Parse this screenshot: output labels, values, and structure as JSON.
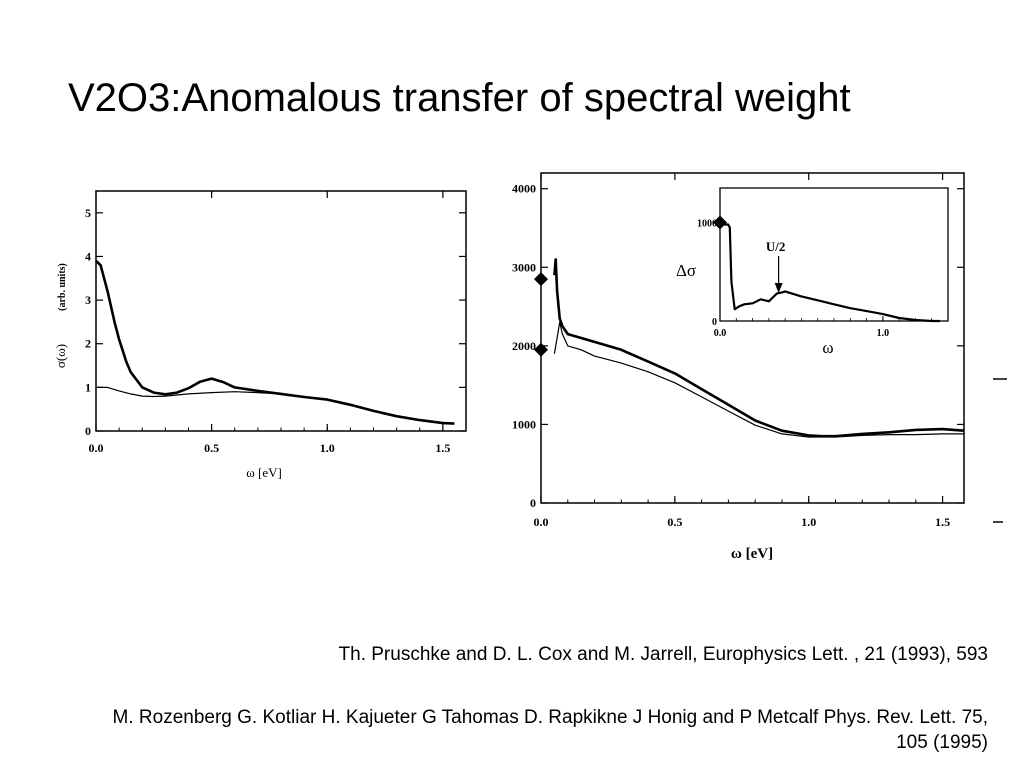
{
  "slide": {
    "title": "V2O3:Anomalous transfer of spectral weight",
    "references": [
      "Th. Pruschke and D. L. Cox and M. Jarrell, Europhysics Lett. , 21 (1993), 593",
      "M. Rozenberg G. Kotliar H. Kajueter G Tahomas D. Rapkikne J Honig and P Metcalf Phys. Rev. Lett. 75, 105 (1995)"
    ]
  },
  "chart_data": [
    {
      "type": "line",
      "xlabel": "ω [eV]",
      "ylabel": "σ(ω)",
      "ylabel_unit": "(arb. units)",
      "xlim": [
        0,
        1.6
      ],
      "ylim": [
        0,
        5.5
      ],
      "xticks": [
        0.0,
        0.5,
        1.0,
        1.5
      ],
      "xtick_labels": [
        "0.0",
        "0.5",
        "1.0",
        "1.5"
      ],
      "yticks": [
        0,
        1,
        2,
        3,
        4,
        5
      ],
      "ytick_labels": [
        "0",
        "1",
        "2",
        "3",
        "4",
        "5"
      ],
      "grid": false,
      "series": [
        {
          "style": "thick",
          "x": [
            0.0,
            0.02,
            0.05,
            0.08,
            0.1,
            0.13,
            0.15,
            0.2,
            0.25,
            0.3,
            0.35,
            0.4,
            0.45,
            0.5,
            0.55,
            0.6,
            0.7,
            0.8,
            0.9,
            1.0,
            1.1,
            1.2,
            1.3,
            1.4,
            1.5,
            1.55
          ],
          "y": [
            3.9,
            3.8,
            3.2,
            2.5,
            2.1,
            1.6,
            1.35,
            1.0,
            0.88,
            0.84,
            0.88,
            0.98,
            1.13,
            1.2,
            1.12,
            1.0,
            0.92,
            0.85,
            0.78,
            0.72,
            0.6,
            0.46,
            0.34,
            0.25,
            0.18,
            0.17
          ]
        },
        {
          "style": "thin",
          "x": [
            0.0,
            0.05,
            0.1,
            0.15,
            0.2,
            0.25,
            0.3,
            0.4,
            0.5,
            0.6,
            0.7,
            0.8,
            0.9,
            1.0,
            1.1,
            1.2,
            1.3,
            1.4,
            1.5,
            1.55
          ],
          "y": [
            1.0,
            1.0,
            0.92,
            0.85,
            0.8,
            0.79,
            0.8,
            0.85,
            0.88,
            0.9,
            0.88,
            0.85,
            0.79,
            0.72,
            0.6,
            0.46,
            0.34,
            0.25,
            0.18,
            0.17
          ]
        }
      ]
    },
    {
      "type": "line",
      "xlabel": "ω [eV]",
      "xlim": [
        0,
        1.58
      ],
      "ylim": [
        0,
        4200
      ],
      "xticks": [
        0.0,
        0.5,
        1.0,
        1.5
      ],
      "xtick_labels": [
        "0.0",
        "0.5",
        "1.0",
        "1.5"
      ],
      "yticks": [
        0,
        1000,
        2000,
        3000,
        4000
      ],
      "ytick_labels": [
        "0",
        "1000",
        "2000",
        "3000",
        "4000"
      ],
      "grid": false,
      "markers": [
        {
          "shape": "diamond",
          "x": 0.0,
          "y": 2850
        },
        {
          "shape": "diamond",
          "x": 0.0,
          "y": 1950
        }
      ],
      "series": [
        {
          "style": "thick",
          "x": [
            0.05,
            0.055,
            0.06,
            0.07,
            0.08,
            0.1,
            0.15,
            0.2,
            0.3,
            0.4,
            0.5,
            0.6,
            0.7,
            0.8,
            0.9,
            1.0,
            1.05,
            1.1,
            1.2,
            1.3,
            1.4,
            1.5,
            1.58
          ],
          "y": [
            2900,
            3100,
            2700,
            2350,
            2250,
            2150,
            2100,
            2050,
            1950,
            1800,
            1650,
            1450,
            1250,
            1050,
            920,
            860,
            850,
            850,
            880,
            900,
            930,
            940,
            920
          ]
        },
        {
          "style": "thin",
          "x": [
            0.05,
            0.06,
            0.07,
            0.08,
            0.1,
            0.15,
            0.2,
            0.3,
            0.4,
            0.5,
            0.6,
            0.7,
            0.8,
            0.9,
            1.0,
            1.05,
            1.1,
            1.2,
            1.3,
            1.4,
            1.5,
            1.58
          ],
          "y": [
            1900,
            2100,
            2300,
            2150,
            2000,
            1950,
            1870,
            1780,
            1670,
            1530,
            1350,
            1170,
            990,
            880,
            840,
            840,
            840,
            860,
            870,
            870,
            880,
            880
          ]
        }
      ],
      "inset": {
        "xlabel": "ω",
        "ylabel": "Δσ",
        "annotation": "U/2",
        "annotation_x": 0.36,
        "xlim": [
          0,
          1.4
        ],
        "ylim": [
          0,
          1350
        ],
        "xticks": [
          0.0,
          1.0
        ],
        "xtick_labels": [
          "0.0",
          "1.0"
        ],
        "yticks": [
          0,
          1000
        ],
        "ytick_labels": [
          "0",
          "1000"
        ],
        "marker": {
          "shape": "diamond",
          "x": 0.0,
          "y": 1000
        },
        "series": [
          {
            "style": "thick",
            "x": [
              0.0,
              0.02,
              0.05,
              0.06,
              0.07,
              0.09,
              0.12,
              0.15,
              0.2,
              0.25,
              0.3,
              0.35,
              0.38,
              0.4,
              0.5,
              0.6,
              0.7,
              0.8,
              0.9,
              1.0,
              1.1,
              1.2,
              1.3,
              1.35
            ],
            "y": [
              1000,
              980,
              980,
              950,
              400,
              120,
              150,
              170,
              180,
              220,
              200,
              280,
              290,
              300,
              250,
              210,
              170,
              130,
              100,
              70,
              30,
              10,
              0,
              0
            ]
          }
        ]
      }
    }
  ]
}
